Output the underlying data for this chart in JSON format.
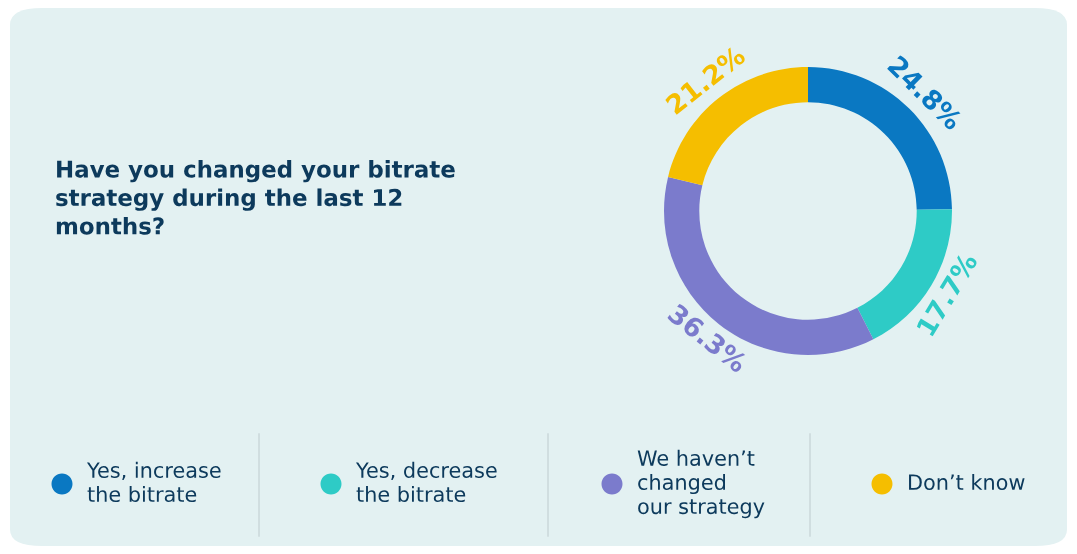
{
  "chart_data": {
    "type": "donut",
    "title": "Have you changed your bitrate\nstrategy during the last 12\nmonths?",
    "categories": [
      "Yes, increase\nthe bitrate",
      "Yes, decrease\nthe bitrate",
      "We haven’t\nchanged\nour strategy",
      "Don’t know"
    ],
    "values": [
      24.8,
      17.7,
      36.3,
      21.2
    ],
    "value_labels": [
      "24.8%",
      "17.7%",
      "36.3%",
      "21.2%"
    ],
    "colors": [
      "#0a78c2",
      "#2ecbc6",
      "#7b7bcc",
      "#f5be00"
    ],
    "legend": "bottom"
  }
}
